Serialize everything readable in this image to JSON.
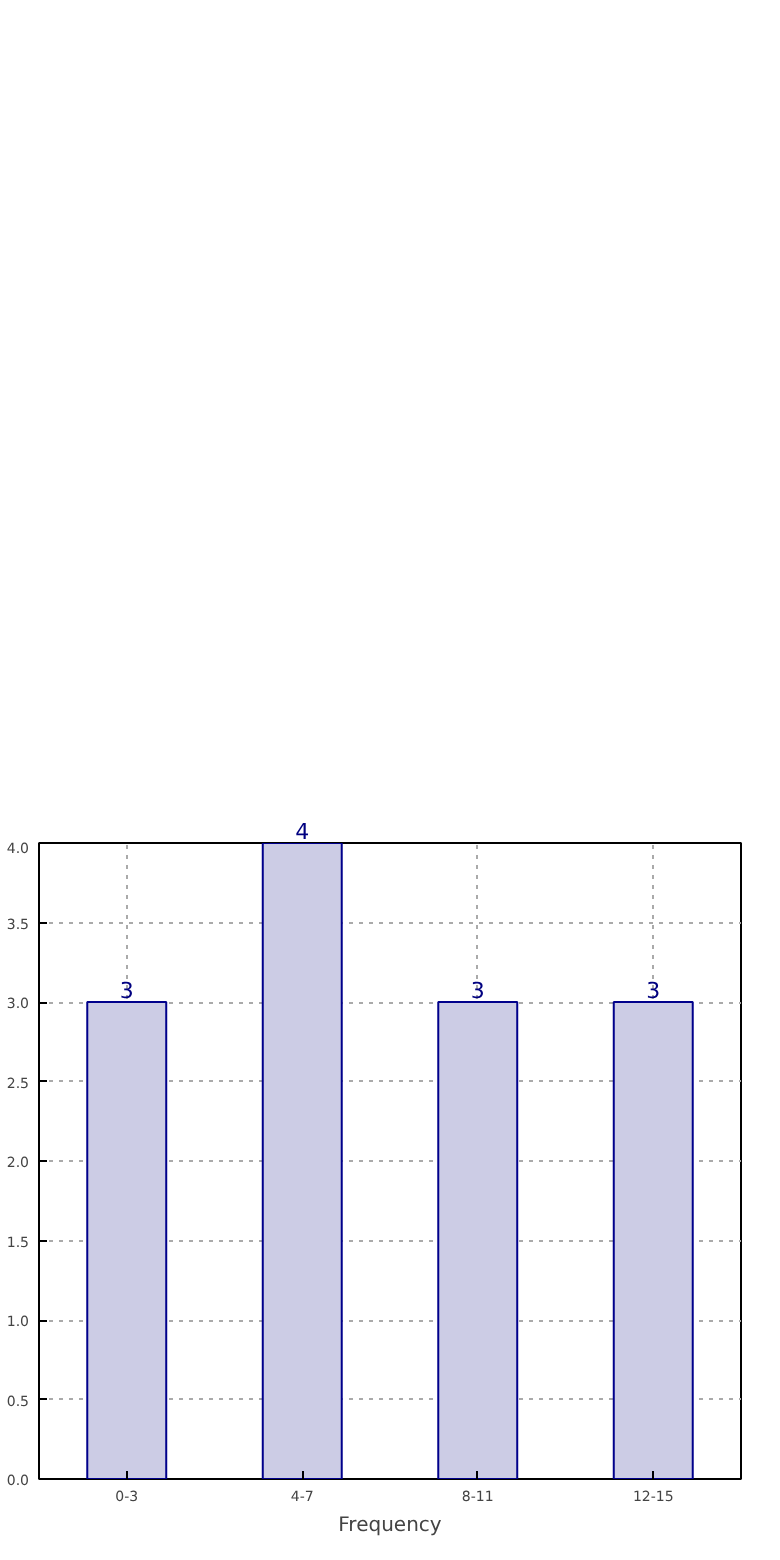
{
  "chart_data": {
    "type": "bar",
    "xlabel": "Frequency",
    "categories": [
      "0-3",
      "4-7",
      "8-11",
      "12-15"
    ],
    "values": [
      3,
      4,
      3,
      3
    ],
    "color": "#ccccE5",
    "ylim": [
      0,
      4
    ],
    "yticks": [
      {
        "value": 0,
        "label": "0.0"
      },
      {
        "value": 0.5,
        "label": "0.5"
      },
      {
        "value": 1,
        "label": "1.0"
      },
      {
        "value": 1.5,
        "label": "1.5"
      },
      {
        "value": 2,
        "label": "2.0"
      },
      {
        "value": 2.5,
        "label": "2.5"
      },
      {
        "value": 3,
        "label": "3.0"
      },
      {
        "value": 3.5,
        "label": "3.5"
      },
      {
        "value": 4,
        "label": "4.0"
      }
    ],
    "grid": true,
    "data_labels": true
  }
}
